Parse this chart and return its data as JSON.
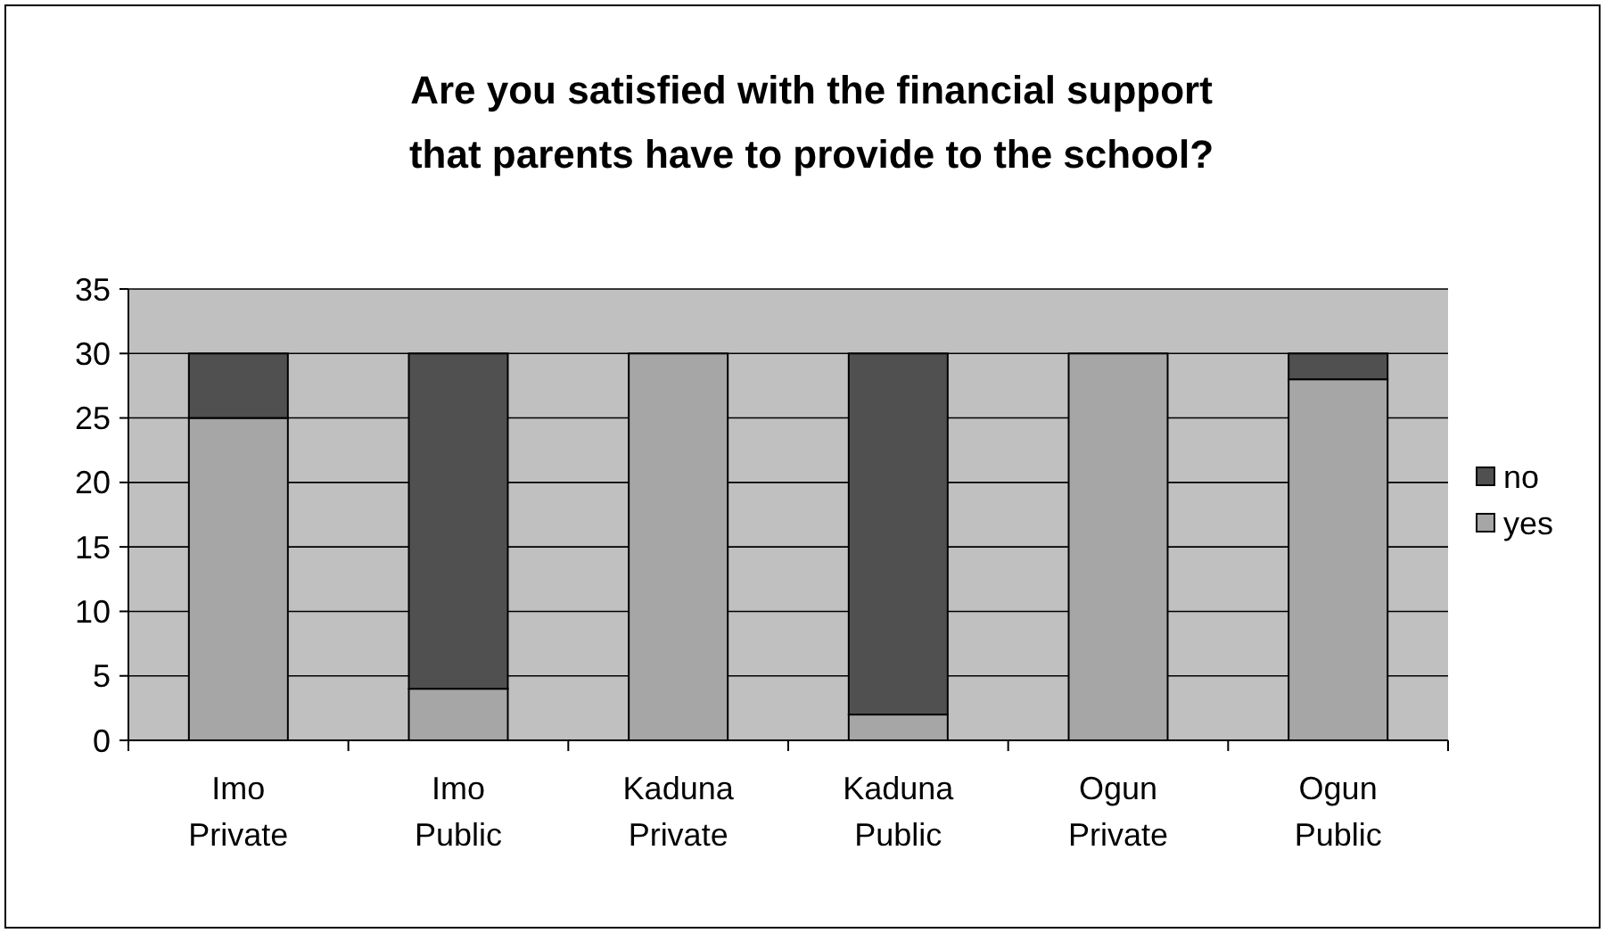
{
  "chart_data": {
    "type": "bar",
    "title": "Are you satisfied with the financial support that parents have to provide to the school?",
    "categories": [
      "Imo Private",
      "Imo Public",
      "Kaduna Private",
      "Kaduna Public",
      "Ogun Private",
      "Ogun Public"
    ],
    "stacked": true,
    "series": [
      {
        "name": "yes",
        "color": "#a6a6a6",
        "values": [
          25,
          4,
          30,
          2,
          30,
          28
        ]
      },
      {
        "name": "no",
        "color": "#505050",
        "values": [
          5,
          26,
          0,
          28,
          0,
          2
        ]
      }
    ],
    "ylim": [
      0,
      35
    ],
    "yticks": [
      0,
      5,
      10,
      15,
      20,
      25,
      30,
      35
    ],
    "grid": "y",
    "legend": "right"
  }
}
